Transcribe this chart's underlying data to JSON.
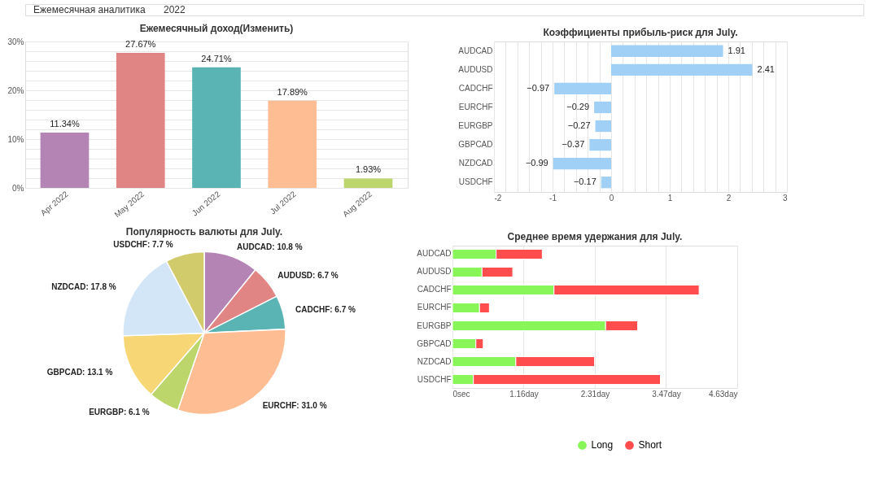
{
  "chart_data": [
    {
      "type": "other",
      "annotations": [
        "Ежемесячная аналитика",
        "2022"
      ]
    },
    {
      "type": "bar",
      "title": "Ежемесячный доход(Изменить)",
      "categories": [
        "Apr 2022",
        "May 2022",
        "Jun 2022",
        "Jul 2022",
        "Aug 2022"
      ],
      "values": [
        11.34,
        27.67,
        24.71,
        17.89,
        1.93
      ],
      "colors": [
        "#b384b4",
        "#e08583",
        "#5bb4b4",
        "#ffbd94",
        "#bcd66c"
      ],
      "value_labels": [
        "11.34%",
        "27.67%",
        "24.71%",
        "17.89%",
        "1.93%"
      ],
      "ylim": [
        0,
        30
      ],
      "yticks": [
        {
          "value": 0,
          "label": "0%"
        },
        {
          "value": 2,
          "label": null
        },
        {
          "value": 4,
          "label": null
        },
        {
          "value": 6,
          "label": null
        },
        {
          "value": 8,
          "label": null
        },
        {
          "value": 10,
          "label": "10%"
        },
        {
          "value": 12,
          "label": null
        },
        {
          "value": 14,
          "label": null
        },
        {
          "value": 16,
          "label": null
        },
        {
          "value": 18,
          "label": null
        },
        {
          "value": 20,
          "label": "20%"
        },
        {
          "value": 22,
          "label": null
        },
        {
          "value": 24,
          "label": null
        },
        {
          "value": 26,
          "label": null
        },
        {
          "value": 28,
          "label": null
        },
        {
          "value": 30,
          "label": "30%"
        }
      ],
      "grid": "y"
    },
    {
      "type": "bar",
      "orientation": "horizontal",
      "title": "Коэффициенты прибыль-риск для July.",
      "categories": [
        "AUDCAD",
        "AUDUSD",
        "CADCHF",
        "EURCHF",
        "EURGBP",
        "GBPCAD",
        "NZDCAD",
        "USDCHF"
      ],
      "values": [
        1.91,
        2.41,
        -0.97,
        -0.29,
        -0.27,
        -0.37,
        -0.99,
        -0.17
      ],
      "color": "#a0d0f5",
      "value_labels": [
        "1.91",
        "2.41",
        "−0.97",
        "−0.29",
        "−0.27",
        "−0.37",
        "−0.99",
        "−0.17"
      ],
      "xlim": [
        -2,
        3
      ],
      "xticks": [
        -2,
        {
          "value": -1.8,
          "label": null
        },
        {
          "value": -1.6,
          "label": null
        },
        {
          "value": -1.4,
          "label": null
        },
        {
          "value": -1.2,
          "label": null
        },
        -1,
        {
          "value": -0.8,
          "label": null
        },
        {
          "value": -0.6,
          "label": null
        },
        {
          "value": -0.4,
          "label": null
        },
        {
          "value": -0.2,
          "label": null
        },
        0,
        {
          "value": 0.2,
          "label": null
        },
        {
          "value": 0.4,
          "label": null
        },
        {
          "value": 0.6,
          "label": null
        },
        {
          "value": 0.8,
          "label": null
        },
        1,
        {
          "value": 1.2,
          "label": null
        },
        {
          "value": 1.4,
          "label": null
        },
        {
          "value": 1.6,
          "label": null
        },
        {
          "value": 1.8,
          "label": null
        },
        2,
        {
          "value": 2.2,
          "label": null
        },
        {
          "value": 2.4,
          "label": null
        },
        {
          "value": 2.6,
          "label": null
        },
        {
          "value": 2.8,
          "label": null
        },
        3
      ],
      "grid": "x"
    },
    {
      "type": "pie",
      "title": "Популярность валюты для July.",
      "categories": [
        "AUDCAD",
        "AUDUSD",
        "CADCHF",
        "EURCHF",
        "EURGBP",
        "GBPCAD",
        "NZDCAD",
        "USDCHF"
      ],
      "values": [
        10.8,
        6.7,
        6.7,
        31.0,
        6.1,
        13.1,
        17.8,
        7.7
      ],
      "colors": [
        "#b384b4",
        "#e08583",
        "#5bb4b4",
        "#ffbd94",
        "#bcd66c",
        "#f7d676",
        "#d2e6f8",
        "#d2cb6c"
      ],
      "value_labels": [
        ": 10.8 %",
        ": 6.7 %",
        ": 6.7 %",
        ": 31.0 %",
        ": 6.1 %",
        ": 13.1 %",
        ": 17.8 %",
        ": 7.7 %"
      ]
    },
    {
      "type": "bar",
      "orientation": "horizontal",
      "stacked": true,
      "title": "Среднее время удержания для July.",
      "categories": [
        "AUDCAD",
        "AUDUSD",
        "CADCHF",
        "EURCHF",
        "EURGBP",
        "GBPCAD",
        "NZDCAD",
        "USDCHF"
      ],
      "series": [
        {
          "name": "Long",
          "color": "#88f558",
          "values": [
            0.71,
            0.48,
            1.65,
            0.44,
            2.49,
            0.38,
            1.03,
            0.34
          ]
        },
        {
          "name": "Short",
          "color": "#ff4d4d",
          "values": [
            0.75,
            0.5,
            2.36,
            0.16,
            0.52,
            0.12,
            1.28,
            3.04
          ]
        }
      ],
      "xlim": [
        0,
        4.63
      ],
      "xticks": [
        {
          "value": 0,
          "label": "0sec"
        },
        {
          "value": 1.157,
          "label": "1.16day"
        },
        {
          "value": 2.315,
          "label": "2.31day"
        },
        {
          "value": 3.472,
          "label": "3.47day"
        },
        {
          "value": 4.63,
          "label": "4.63day"
        }
      ],
      "grid": "x",
      "legend": "bottom"
    }
  ]
}
